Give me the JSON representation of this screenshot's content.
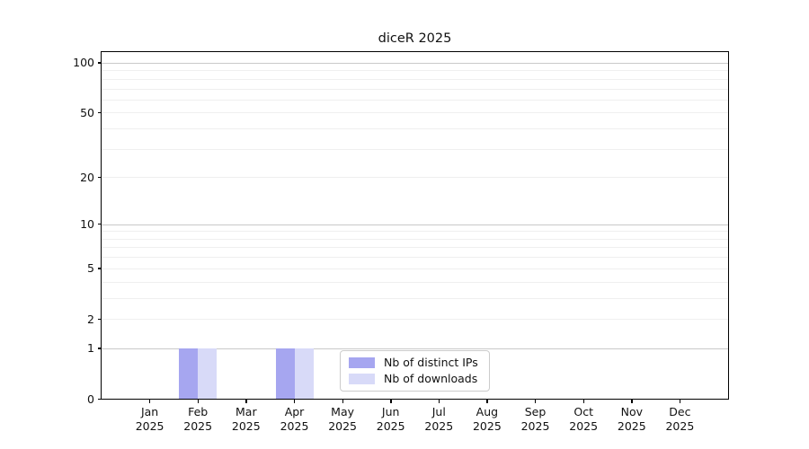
{
  "chart_data": {
    "type": "bar",
    "title": "diceR 2025",
    "categories": [
      "Jan",
      "Feb",
      "Mar",
      "Apr",
      "May",
      "Jun",
      "Jul",
      "Aug",
      "Sep",
      "Oct",
      "Nov",
      "Dec"
    ],
    "x_tick_year": "2025",
    "series": [
      {
        "name": "Nb of distinct IPs",
        "color": "#a6a6f0",
        "values": [
          0,
          1,
          0,
          1,
          0,
          0,
          0,
          0,
          0,
          0,
          0,
          0
        ]
      },
      {
        "name": "Nb of downloads",
        "color": "#d8daf8",
        "values": [
          0,
          1,
          0,
          1,
          0,
          0,
          0,
          0,
          0,
          0,
          0,
          0
        ]
      }
    ],
    "yscale": "log1p",
    "ylim": [
      0,
      116
    ],
    "y_tick_labels": [
      100,
      50,
      20,
      10,
      5,
      2,
      1,
      0
    ],
    "y_major_grid": [
      1,
      10,
      100
    ],
    "y_minor_grid": [
      2,
      3,
      4,
      5,
      6,
      7,
      8,
      9,
      20,
      30,
      40,
      50,
      60,
      70,
      80,
      90
    ],
    "xlabel": "",
    "ylabel": "",
    "legend": {
      "position": "lower-center",
      "entries": [
        "Nb of distinct IPs",
        "Nb of downloads"
      ]
    },
    "colors": {
      "frame": "#000000",
      "grid_major": "#c9c9c9",
      "grid_minor": "#efefef",
      "background": "#ffffff"
    }
  }
}
